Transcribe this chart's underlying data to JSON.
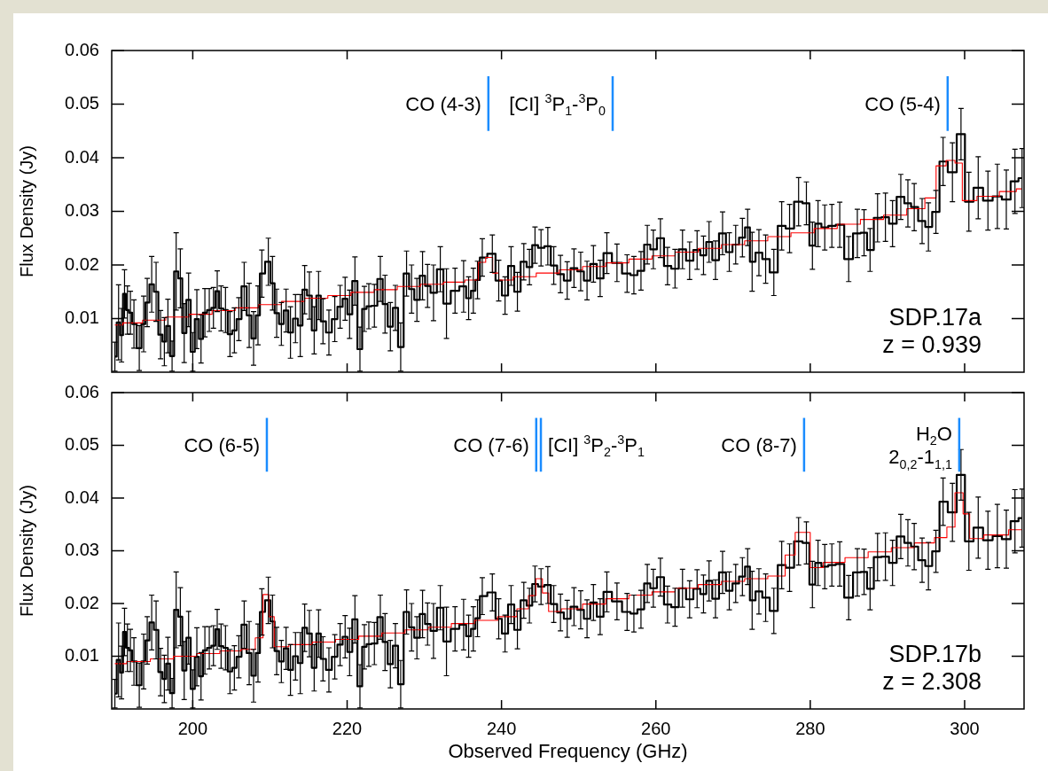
{
  "chart_data": [
    {
      "type": "step",
      "ylabel": "Flux Density (Jy)",
      "xlim": [
        189.5,
        307.7
      ],
      "xticks": [
        200,
        220,
        240,
        260,
        280,
        300
      ],
      "ylim": [
        0,
        0.06
      ],
      "yticks": [
        0.01,
        0.02,
        0.03,
        0.04,
        0.05,
        0.06
      ],
      "tick_labels": "y",
      "series": [
        {
          "color": "#000000",
          "x": [
            189.91,
            190.39,
            190.77,
            191.16,
            191.54,
            191.92,
            192.38,
            193.07,
            193.64,
            194.1,
            194.68,
            195.25,
            195.83,
            196.32,
            196.78,
            197.32,
            197.85,
            198.39,
            198.89,
            199.46,
            200.0,
            200.53,
            201.07,
            201.57,
            202.14,
            202.68,
            203.17,
            203.67,
            204.24,
            204.82,
            205.39,
            205.97,
            206.66,
            207.31,
            207.88,
            208.45,
            208.95,
            209.79,
            210.33,
            210.87,
            211.48,
            212.09,
            212.66,
            213.31,
            213.93,
            214.5,
            215.11,
            215.73,
            216.3,
            216.87,
            217.64,
            218.4,
            219.09,
            219.74,
            220.32,
            221.01,
            221.66,
            222.23,
            222.81,
            223.53,
            224.3,
            224.91,
            225.6,
            226.25,
            226.94,
            227.7,
            228.35,
            229.04,
            229.77,
            230.42,
            231.19,
            232.07,
            232.87,
            233.98,
            235.09,
            235.74,
            236.35,
            236.89,
            237.51,
            238.81,
            239.64,
            240.46,
            241.24,
            242.06,
            242.89,
            243.62,
            244.34,
            245.12,
            246.0,
            246.77,
            247.64,
            248.51,
            249.39,
            250.26,
            251.08,
            251.91,
            252.78,
            253.65,
            254.96,
            256.27,
            257.15,
            258.07,
            258.89,
            259.67,
            260.59,
            261.51,
            262.48,
            263.45,
            264.37,
            265.34,
            266.17,
            266.89,
            267.72,
            268.64,
            269.51,
            270.34,
            271.21,
            271.89,
            272.47,
            273.35,
            274.22,
            275.28,
            276.3,
            277.32,
            278.49,
            279.5,
            280.28,
            281.01,
            281.88,
            282.8,
            283.82,
            284.98,
            286.1,
            286.97,
            287.75,
            288.72,
            289.74,
            290.66,
            291.73,
            292.65,
            293.47,
            294.49,
            295.31,
            296.28,
            297.21,
            298.42,
            299.53,
            300.55,
            301.76,
            303.02,
            304.24,
            305.4,
            306.52,
            307.44
          ],
          "values": [
            0.0029,
            0.0093,
            0.0069,
            0.0146,
            0.0116,
            0.0111,
            0.009,
            0.0045,
            0.009,
            0.013,
            0.0164,
            0.015,
            0.007,
            0.0057,
            0.0086,
            0.003,
            0.0188,
            0.0175,
            0.0073,
            0.0135,
            0.0038,
            0.0099,
            0.0062,
            0.0111,
            0.0116,
            0.012,
            0.0151,
            0.0119,
            0.0116,
            0.0071,
            0.0078,
            0.0099,
            0.016,
            0.0106,
            0.0063,
            0.0106,
            0.0184,
            0.0206,
            0.0166,
            0.011,
            0.009,
            0.0115,
            0.0074,
            0.01,
            0.0087,
            0.0154,
            0.0143,
            0.0078,
            0.0143,
            0.0095,
            0.0074,
            0.0099,
            0.0122,
            0.0137,
            0.0108,
            0.017,
            0.0043,
            0.0118,
            0.0123,
            0.0124,
            0.0174,
            0.0127,
            0.0085,
            0.012,
            0.0047,
            0.0184,
            0.0155,
            0.0135,
            0.018,
            0.0161,
            0.0148,
            0.0192,
            0.0128,
            0.0152,
            0.016,
            0.0138,
            0.0152,
            0.0172,
            0.0214,
            0.0221,
            0.0171,
            0.0143,
            0.0198,
            0.015,
            0.0206,
            0.0196,
            0.0237,
            0.0232,
            0.0235,
            0.0199,
            0.0183,
            0.0171,
            0.0194,
            0.0188,
            0.0171,
            0.0202,
            0.0175,
            0.0222,
            0.0204,
            0.0184,
            0.0181,
            0.0189,
            0.0238,
            0.0229,
            0.025,
            0.0198,
            0.0193,
            0.0229,
            0.0208,
            0.0228,
            0.0218,
            0.0243,
            0.0209,
            0.0259,
            0.0224,
            0.0238,
            0.0251,
            0.027,
            0.0206,
            0.0223,
            0.0211,
            0.0186,
            0.0273,
            0.0268,
            0.0318,
            0.0315,
            0.0236,
            0.0277,
            0.027,
            0.0273,
            0.0275,
            0.0211,
            0.0259,
            0.026,
            0.0228,
            0.0288,
            0.0289,
            0.0277,
            0.0327,
            0.0315,
            0.0308,
            0.0282,
            0.0271,
            0.0299,
            0.0393,
            0.0373,
            0.0444,
            0.0318,
            0.0344,
            0.032,
            0.0328,
            0.0322,
            0.0356,
            0.0362
          ],
          "errors": [
            0.0027,
            0.007,
            0.005,
            0.0045,
            0.0045,
            0.004,
            0.0045,
            0.0042,
            0.0052,
            0.0045,
            0.0052,
            0.0055,
            0.0045,
            0.0045,
            0.005,
            0.0028,
            0.0072,
            0.0055,
            0.0055,
            0.005,
            0.0036,
            0.0055,
            0.0045,
            0.0045,
            0.004,
            0.0038,
            0.0038,
            0.0042,
            0.0042,
            0.0042,
            0.0042,
            0.004,
            0.0045,
            0.006,
            0.005,
            0.0055,
            0.0044,
            0.0044,
            0.005,
            0.0045,
            0.004,
            0.004,
            0.0048,
            0.0045,
            0.0058,
            0.0045,
            0.0044,
            0.0044,
            0.0045,
            0.0042,
            0.0042,
            0.0042,
            0.004,
            0.004,
            0.0045,
            0.0045,
            0.0041,
            0.0042,
            0.0042,
            0.004,
            0.0042,
            0.0054,
            0.0045,
            0.0042,
            0.0045,
            0.0042,
            0.0045,
            0.004,
            0.0045,
            0.004,
            0.0052,
            0.0042,
            0.0065,
            0.0042,
            0.0048,
            0.004,
            0.0042,
            0.0035,
            0.0035,
            0.0035,
            0.0038,
            0.0035,
            0.0036,
            0.0036,
            0.0034,
            0.0033,
            0.0034,
            0.0034,
            0.0035,
            0.0035,
            0.0035,
            0.0035,
            0.0036,
            0.0036,
            0.0036,
            0.0034,
            0.0034,
            0.0038,
            0.0035,
            0.0035,
            0.0035,
            0.0036,
            0.0036,
            0.0036,
            0.0036,
            0.0035,
            0.0036,
            0.0036,
            0.0035,
            0.0036,
            0.0036,
            0.0038,
            0.0036,
            0.004,
            0.0036,
            0.0036,
            0.0036,
            0.0034,
            0.0055,
            0.0043,
            0.0045,
            0.0043,
            0.0045,
            0.0045,
            0.0045,
            0.004,
            0.0044,
            0.0043,
            0.0042,
            0.004,
            0.0042,
            0.0042,
            0.0045,
            0.0043,
            0.004,
            0.0045,
            0.0045,
            0.0043,
            0.0042,
            0.0044,
            0.0044,
            0.0042,
            0.0045,
            0.004,
            0.0045,
            0.0055,
            0.0048,
            0.0055,
            0.0058,
            0.0055,
            0.006,
            0.0055,
            0.006,
            0.0055
          ]
        },
        {
          "color": "#ff0000",
          "x": [
            189.9,
            192,
            195,
            198,
            201,
            204,
            207,
            210,
            213,
            216,
            219,
            222,
            225,
            228,
            231,
            234,
            236.5,
            237.5,
            238.4,
            239.3,
            240,
            243,
            246,
            249,
            252,
            255,
            258,
            261,
            264,
            267,
            270,
            273,
            276,
            279,
            282,
            285,
            288,
            291,
            294,
            295.7,
            296.9,
            298.3,
            299.2,
            300.2,
            303,
            306,
            307.4
          ],
          "values": [
            0.0088,
            0.0092,
            0.0097,
            0.0103,
            0.0108,
            0.0115,
            0.012,
            0.0126,
            0.0132,
            0.0138,
            0.0143,
            0.0149,
            0.0154,
            0.016,
            0.0164,
            0.0168,
            0.0172,
            0.0205,
            0.0214,
            0.0185,
            0.0172,
            0.0178,
            0.0185,
            0.0191,
            0.0197,
            0.0204,
            0.0211,
            0.0217,
            0.0224,
            0.0231,
            0.0238,
            0.0245,
            0.0253,
            0.026,
            0.0268,
            0.0276,
            0.0285,
            0.0293,
            0.0305,
            0.0325,
            0.0385,
            0.0395,
            0.039,
            0.032,
            0.0328,
            0.0337,
            0.0342
          ]
        }
      ],
      "ref_lines": [
        {
          "axis": "x",
          "value": 238.3,
          "label": "CO (4-3)",
          "color": "#1a8cff"
        },
        {
          "axis": "x",
          "value": 254.4,
          "label": "[CI] $^{3}$P$_{1}$-$^{3}$P$_{0}$",
          "color": "#1a8cff"
        },
        {
          "axis": "x",
          "value": 297.8,
          "label": "CO (5-4)",
          "color": "#1a8cff"
        }
      ],
      "annotations": [
        "SDP.17a",
        "z = 0.939"
      ]
    },
    {
      "type": "step",
      "xlabel": "Observed Frequency (GHz)",
      "ylabel": "Flux Density (Jy)",
      "xlim": [
        189.5,
        307.7
      ],
      "xticks": [
        200,
        220,
        240,
        260,
        280,
        300
      ],
      "ylim": [
        0,
        0.06
      ],
      "yticks": [
        0.01,
        0.02,
        0.03,
        0.04,
        0.05,
        0.06
      ],
      "series": [
        {
          "color": "#000000",
          "x": [
            189.91,
            190.39,
            190.77,
            191.16,
            191.54,
            191.92,
            192.38,
            193.07,
            193.64,
            194.1,
            194.68,
            195.25,
            195.83,
            196.32,
            196.78,
            197.32,
            197.85,
            198.39,
            198.89,
            199.46,
            200.0,
            200.53,
            201.07,
            201.57,
            202.14,
            202.68,
            203.17,
            203.67,
            204.24,
            204.82,
            205.39,
            205.97,
            206.66,
            207.31,
            207.88,
            208.45,
            208.95,
            209.79,
            210.33,
            210.87,
            211.48,
            212.09,
            212.66,
            213.31,
            213.93,
            214.5,
            215.11,
            215.73,
            216.3,
            216.87,
            217.64,
            218.4,
            219.09,
            219.74,
            220.32,
            221.01,
            221.66,
            222.23,
            222.81,
            223.53,
            224.3,
            224.91,
            225.6,
            226.25,
            226.94,
            227.7,
            228.35,
            229.04,
            229.77,
            230.42,
            231.19,
            232.07,
            232.87,
            233.98,
            235.09,
            235.74,
            236.35,
            236.89,
            237.51,
            238.81,
            239.64,
            240.46,
            241.24,
            242.06,
            242.89,
            243.62,
            244.34,
            245.12,
            246.0,
            246.77,
            247.64,
            248.51,
            249.39,
            250.26,
            251.08,
            251.91,
            252.78,
            253.65,
            254.96,
            256.27,
            257.15,
            258.07,
            258.89,
            259.67,
            260.59,
            261.51,
            262.48,
            263.45,
            264.37,
            265.34,
            266.17,
            266.89,
            267.72,
            268.64,
            269.51,
            270.34,
            271.21,
            271.89,
            272.47,
            273.35,
            274.22,
            275.28,
            276.3,
            277.32,
            278.49,
            279.5,
            280.28,
            281.01,
            281.88,
            282.8,
            283.82,
            284.98,
            286.1,
            286.97,
            287.75,
            288.72,
            289.74,
            290.66,
            291.73,
            292.65,
            293.47,
            294.49,
            295.31,
            296.28,
            297.21,
            298.42,
            299.53,
            300.55,
            301.76,
            303.02,
            304.24,
            305.4,
            306.52,
            307.44
          ],
          "values": [
            0.0029,
            0.0093,
            0.0069,
            0.0146,
            0.0116,
            0.0111,
            0.009,
            0.0045,
            0.009,
            0.013,
            0.0164,
            0.015,
            0.007,
            0.0057,
            0.0086,
            0.003,
            0.0188,
            0.0175,
            0.0073,
            0.0135,
            0.0038,
            0.0099,
            0.0062,
            0.0111,
            0.0116,
            0.012,
            0.0151,
            0.0119,
            0.0116,
            0.0071,
            0.0078,
            0.0099,
            0.016,
            0.0106,
            0.0063,
            0.0106,
            0.0184,
            0.0206,
            0.0166,
            0.011,
            0.009,
            0.0115,
            0.0074,
            0.01,
            0.0087,
            0.0154,
            0.0143,
            0.0078,
            0.0143,
            0.0095,
            0.0074,
            0.0099,
            0.0122,
            0.0137,
            0.0108,
            0.017,
            0.0043,
            0.0118,
            0.0123,
            0.0124,
            0.0174,
            0.0127,
            0.0085,
            0.012,
            0.0047,
            0.0184,
            0.0155,
            0.0135,
            0.018,
            0.0161,
            0.0148,
            0.0192,
            0.0128,
            0.0152,
            0.016,
            0.0138,
            0.0152,
            0.0172,
            0.0214,
            0.0221,
            0.0171,
            0.0143,
            0.0198,
            0.015,
            0.0206,
            0.0196,
            0.0237,
            0.0232,
            0.0235,
            0.0199,
            0.0183,
            0.0171,
            0.0194,
            0.0188,
            0.0171,
            0.0202,
            0.0175,
            0.0222,
            0.0204,
            0.0184,
            0.0181,
            0.0189,
            0.0238,
            0.0229,
            0.025,
            0.0198,
            0.0193,
            0.0229,
            0.0208,
            0.0228,
            0.0218,
            0.0243,
            0.0209,
            0.0259,
            0.0224,
            0.0238,
            0.0251,
            0.027,
            0.0206,
            0.0223,
            0.0211,
            0.0186,
            0.0273,
            0.0268,
            0.0318,
            0.0315,
            0.0236,
            0.0277,
            0.027,
            0.0273,
            0.0275,
            0.0211,
            0.0259,
            0.026,
            0.0228,
            0.0288,
            0.0289,
            0.0277,
            0.0327,
            0.0315,
            0.0308,
            0.0282,
            0.0271,
            0.0299,
            0.0393,
            0.0373,
            0.0444,
            0.0318,
            0.0344,
            0.032,
            0.0328,
            0.0322,
            0.0356,
            0.0362
          ],
          "errors": [
            0.0027,
            0.007,
            0.005,
            0.0045,
            0.0045,
            0.004,
            0.0045,
            0.0042,
            0.0052,
            0.0045,
            0.0052,
            0.0055,
            0.0045,
            0.0045,
            0.005,
            0.0028,
            0.0072,
            0.0055,
            0.0055,
            0.005,
            0.0036,
            0.0055,
            0.0045,
            0.0045,
            0.004,
            0.0038,
            0.0038,
            0.0042,
            0.0042,
            0.0042,
            0.0042,
            0.004,
            0.0045,
            0.006,
            0.005,
            0.0055,
            0.0044,
            0.0044,
            0.005,
            0.0045,
            0.004,
            0.004,
            0.0048,
            0.0045,
            0.0058,
            0.0045,
            0.0044,
            0.0044,
            0.0045,
            0.0042,
            0.0042,
            0.0042,
            0.004,
            0.004,
            0.0045,
            0.0045,
            0.0041,
            0.0042,
            0.0042,
            0.004,
            0.0042,
            0.0054,
            0.0045,
            0.0042,
            0.0045,
            0.0042,
            0.0045,
            0.004,
            0.0045,
            0.004,
            0.0052,
            0.0042,
            0.0065,
            0.0042,
            0.0048,
            0.004,
            0.0042,
            0.0035,
            0.0035,
            0.0035,
            0.0038,
            0.0035,
            0.0036,
            0.0036,
            0.0034,
            0.0033,
            0.0034,
            0.0034,
            0.0035,
            0.0035,
            0.0035,
            0.0035,
            0.0036,
            0.0036,
            0.0036,
            0.0034,
            0.0034,
            0.0038,
            0.0035,
            0.0035,
            0.0035,
            0.0036,
            0.0036,
            0.0036,
            0.0036,
            0.0035,
            0.0036,
            0.0036,
            0.0035,
            0.0036,
            0.0036,
            0.0038,
            0.0036,
            0.004,
            0.0036,
            0.0036,
            0.0036,
            0.0034,
            0.0055,
            0.0043,
            0.0045,
            0.0043,
            0.0045,
            0.0045,
            0.0045,
            0.004,
            0.0044,
            0.0043,
            0.0042,
            0.004,
            0.0042,
            0.0042,
            0.0045,
            0.0043,
            0.004,
            0.0045,
            0.0045,
            0.0043,
            0.0042,
            0.0044,
            0.0044,
            0.0042,
            0.0045,
            0.004,
            0.0045,
            0.0055,
            0.0048,
            0.0055,
            0.0058,
            0.0055,
            0.006,
            0.0055,
            0.006,
            0.0055
          ]
        },
        {
          "color": "#ff0000",
          "x": [
            189.9,
            193,
            196,
            199,
            202,
            205,
            207.5,
            208.7,
            209.5,
            210.2,
            210.9,
            214,
            217,
            220,
            223,
            226,
            229,
            232,
            235,
            238,
            241,
            243,
            244,
            244.9,
            245.7,
            246.5,
            249,
            252,
            255,
            258,
            261,
            264,
            267,
            270,
            273,
            276,
            277.5,
            278.6,
            279.6,
            280.4,
            283,
            286,
            289,
            292,
            295,
            297.2,
            298.2,
            299.3,
            300.3,
            301,
            304,
            307.4
          ],
          "values": [
            0.0086,
            0.009,
            0.0095,
            0.01,
            0.0105,
            0.011,
            0.0113,
            0.0135,
            0.0217,
            0.0175,
            0.0118,
            0.0122,
            0.0127,
            0.0132,
            0.0138,
            0.0144,
            0.015,
            0.0155,
            0.0162,
            0.0168,
            0.0175,
            0.019,
            0.0215,
            0.0247,
            0.022,
            0.0185,
            0.019,
            0.0199,
            0.0209,
            0.0216,
            0.0222,
            0.0229,
            0.0236,
            0.0242,
            0.0247,
            0.0252,
            0.0292,
            0.0335,
            0.0335,
            0.0268,
            0.0278,
            0.0287,
            0.0298,
            0.0306,
            0.0315,
            0.0325,
            0.0345,
            0.041,
            0.037,
            0.0323,
            0.033,
            0.034
          ]
        }
      ],
      "ref_lines": [
        {
          "axis": "x",
          "value": 209.6,
          "label": "CO (6-5)",
          "color": "#1a8cff"
        },
        {
          "axis": "x",
          "value": 244.5,
          "label": "CO (7-6)",
          "color": "#1a8cff"
        },
        {
          "axis": "x",
          "value": 245.1,
          "label": "[CI] $^{3}$P$_{2}$-$^{3}$P$_{1}$",
          "color": "#1a8cff"
        },
        {
          "axis": "x",
          "value": 279.2,
          "label": "CO (8-7)",
          "color": "#1a8cff"
        },
        {
          "axis": "x",
          "value": 299.3,
          "label": "H$_{2}$O\n2$_{0,2}$-1$_{1,1}$",
          "color": "#1a8cff"
        }
      ],
      "annotations": [
        "SDP.17b",
        "z = 2.308"
      ]
    }
  ]
}
